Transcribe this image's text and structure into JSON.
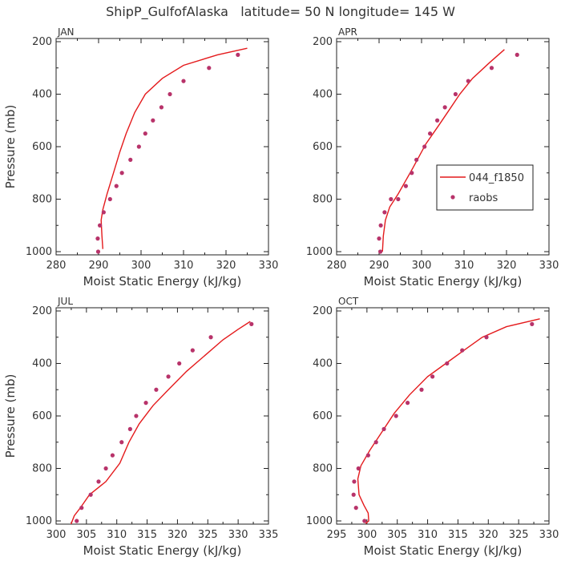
{
  "title": "ShipP_GulfofAlaska   latitude= 50 N longitude= 145 W",
  "legend": {
    "line_label": "044_f1850",
    "dot_label": "raobs"
  },
  "colors": {
    "model": "#e41a1c",
    "obs": "#b8336a"
  },
  "chart_data": [
    {
      "type": "line",
      "panel": "JAN",
      "xlabel": "Moist Static Energy (kJ/kg)",
      "ylabel": "Pressure (mb)",
      "xlim": [
        280,
        330
      ],
      "xticks": [
        280,
        290,
        300,
        310,
        320,
        330
      ],
      "ylim": [
        200,
        1000
      ],
      "yticks": [
        200,
        400,
        600,
        800,
        1000
      ],
      "y_inverted": true,
      "series": [
        {
          "name": "044_f1850",
          "style": "line",
          "x": [
            325,
            318,
            310,
            305,
            301,
            298.5,
            296.5,
            295,
            293.5,
            292,
            291,
            290.6,
            290.8,
            291
          ],
          "y": [
            225,
            250,
            290,
            340,
            400,
            470,
            550,
            620,
            700,
            780,
            840,
            880,
            940,
            990
          ]
        },
        {
          "name": "raobs",
          "style": "markers",
          "x": [
            322.8,
            316,
            310,
            306.8,
            304.8,
            302.8,
            301,
            299.5,
            297.5,
            295.5,
            294.2,
            292.7,
            291.2,
            290.3,
            289.8,
            289.9
          ],
          "y": [
            250,
            300,
            350,
            400,
            450,
            500,
            550,
            600,
            650,
            700,
            750,
            800,
            850,
            900,
            950,
            1000
          ]
        }
      ]
    },
    {
      "type": "line",
      "panel": "APR",
      "xlabel": "Moist Static Energy (kJ/kg)",
      "ylabel": "",
      "xlim": [
        280,
        330
      ],
      "xticks": [
        280,
        290,
        300,
        310,
        320,
        330
      ],
      "ylim": [
        200,
        1000
      ],
      "yticks": [
        200,
        400,
        600,
        800,
        1000
      ],
      "y_inverted": true,
      "series": [
        {
          "name": "044_f1850",
          "style": "line",
          "x": [
            319.5,
            316,
            312,
            309,
            306.5,
            304,
            301,
            298,
            294.5,
            292.5,
            291.5,
            291,
            290.8
          ],
          "y": [
            230,
            280,
            340,
            400,
            460,
            520,
            590,
            680,
            780,
            830,
            880,
            940,
            1000
          ]
        },
        {
          "name": "raobs",
          "style": "markers",
          "x": [
            322.5,
            316.5,
            311,
            308,
            305.5,
            303.7,
            302,
            300.7,
            298.8,
            297.7,
            296.3,
            294.5,
            292.8,
            291.3,
            290.4,
            290,
            290.3
          ],
          "y": [
            250,
            300,
            350,
            400,
            450,
            500,
            550,
            600,
            650,
            700,
            750,
            800,
            800,
            850,
            900,
            950,
            1000
          ]
        }
      ]
    },
    {
      "type": "line",
      "panel": "JUL",
      "xlabel": "Moist Static Energy (kJ/kg)",
      "ylabel": "Pressure (mb)",
      "xlim": [
        300,
        335
      ],
      "xticks": [
        300,
        305,
        310,
        315,
        320,
        325,
        330,
        335
      ],
      "ylim": [
        200,
        1000
      ],
      "yticks": [
        200,
        400,
        600,
        800,
        1000
      ],
      "y_inverted": true,
      "series": [
        {
          "name": "044_f1850",
          "style": "line",
          "x": [
            332,
            330,
            327.5,
            324.5,
            321.5,
            318.5,
            316,
            313.7,
            312,
            310.5,
            308.2,
            305.5,
            304,
            303,
            302.5,
            302.3
          ],
          "y": [
            240,
            270,
            310,
            370,
            430,
            500,
            560,
            630,
            700,
            780,
            850,
            900,
            950,
            980,
            1010,
            1020
          ]
        },
        {
          "name": "raobs",
          "style": "markers",
          "x": [
            332.2,
            325.5,
            322.5,
            320.3,
            318.5,
            316.5,
            314.8,
            313.2,
            312.2,
            310.8,
            309.3,
            308.2,
            307,
            305.7,
            304.2,
            303.4
          ],
          "y": [
            250,
            300,
            350,
            400,
            450,
            500,
            550,
            600,
            650,
            700,
            750,
            800,
            850,
            900,
            950,
            1000
          ]
        }
      ]
    },
    {
      "type": "line",
      "panel": "OCT",
      "xlabel": "Moist Static Energy (kJ/kg)",
      "ylabel": "",
      "xlim": [
        295,
        330
      ],
      "xticks": [
        295,
        300,
        305,
        310,
        315,
        320,
        325,
        330
      ],
      "ylim": [
        200,
        1000
      ],
      "yticks": [
        200,
        400,
        600,
        800,
        1000
      ],
      "y_inverted": true,
      "series": [
        {
          "name": "044_f1850",
          "style": "line",
          "x": [
            328.5,
            323,
            319,
            316,
            313,
            310,
            307,
            304.5,
            302.5,
            300.5,
            299,
            298.5,
            298.7,
            299.5,
            300.2,
            300.3,
            299.8
          ],
          "y": [
            230,
            260,
            300,
            350,
            400,
            450,
            520,
            590,
            660,
            730,
            790,
            840,
            900,
            940,
            970,
            1000,
            1010
          ]
        },
        {
          "name": "raobs",
          "style": "markers",
          "x": [
            327.2,
            319.7,
            315.7,
            313.2,
            310.8,
            309,
            306.7,
            304.8,
            302.8,
            301.5,
            300.2,
            298.6,
            297.9,
            297.8,
            298.2,
            299.6
          ],
          "y": [
            250,
            300,
            350,
            400,
            450,
            500,
            550,
            600,
            650,
            700,
            750,
            800,
            850,
            900,
            950,
            1000
          ]
        }
      ]
    }
  ]
}
